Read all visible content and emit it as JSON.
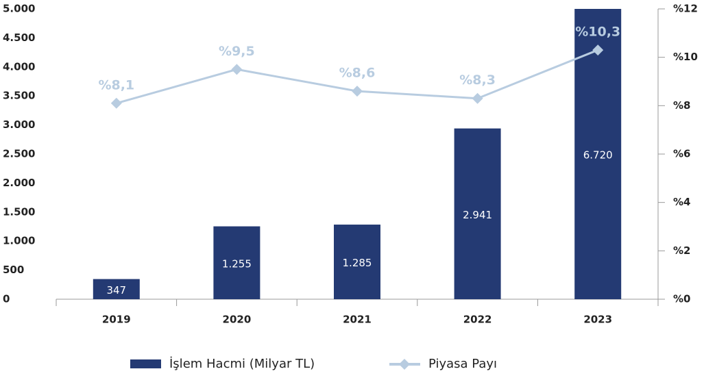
{
  "chart_data": {
    "type": "bar",
    "categories": [
      "2019",
      "2020",
      "2021",
      "2022",
      "2023"
    ],
    "series": [
      {
        "name": "İşlem Hacmi (Milyar TL)",
        "type": "bar",
        "color": "#243a73",
        "values": [
          347,
          1255,
          1285,
          2941,
          6720
        ],
        "value_labels": [
          "347",
          "1.255",
          "1.285",
          "2.941",
          "6.720"
        ]
      },
      {
        "name": "Piyasa Payı",
        "type": "line",
        "axis": "y2",
        "color": "#b8cce0",
        "values": [
          8.1,
          9.5,
          8.6,
          8.3,
          10.3
        ],
        "value_labels": [
          "%8,1",
          "%9,5",
          "%8,6",
          "%8,3",
          "%10,3"
        ]
      }
    ],
    "ylim": [
      0,
      5000
    ],
    "yticks": [
      0,
      500,
      {
        "value": 1000,
        "label": "1.000"
      },
      {
        "value": 1500,
        "label": "1.500"
      },
      {
        "value": 2000,
        "label": "2.000"
      },
      {
        "value": 2500,
        "label": "2.500"
      },
      {
        "value": 3000,
        "label": "3.000"
      },
      {
        "value": 3500,
        "label": "3.500"
      },
      {
        "value": 4000,
        "label": "4.000"
      },
      {
        "value": 4500,
        "label": "4.500"
      },
      {
        "value": 5000,
        "label": "5.000"
      }
    ],
    "y2lim": [
      0,
      12
    ],
    "y2ticks": [
      {
        "value": 0,
        "label": "%0"
      },
      {
        "value": 2,
        "label": "%2"
      },
      {
        "value": 4,
        "label": "%4"
      },
      {
        "value": 6,
        "label": "%6"
      },
      {
        "value": 8,
        "label": "%8"
      },
      {
        "value": 10,
        "label": "%10"
      },
      {
        "value": 12,
        "label": "%12"
      }
    ],
    "legend": "bottom"
  }
}
